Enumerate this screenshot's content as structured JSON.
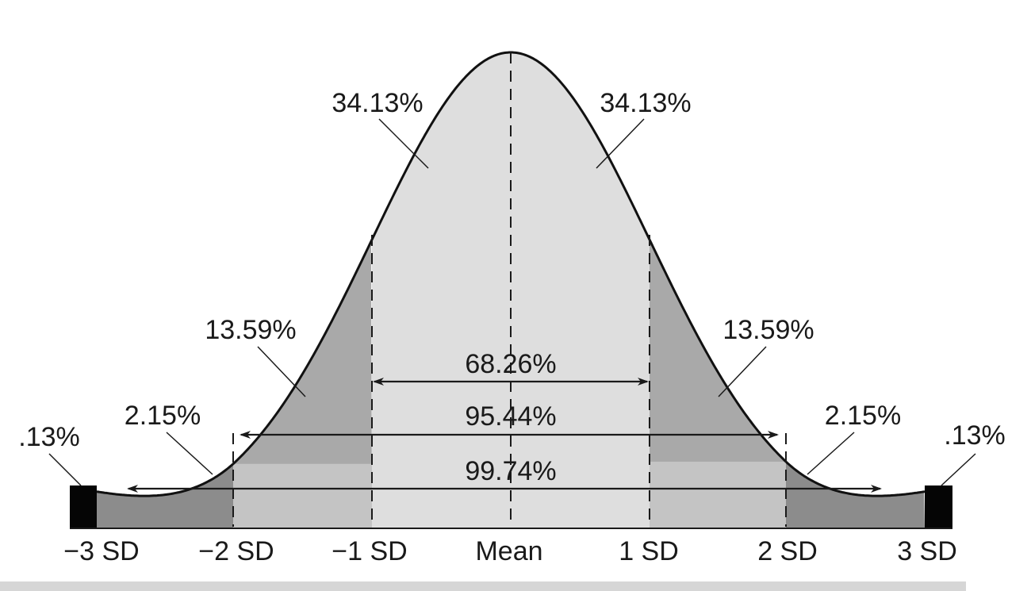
{
  "colors": {
    "center_band": "#dedede",
    "inner_band": "#a9a9a9",
    "middle_band": "#c4c4c4",
    "tail_band": "#8c8c8c",
    "extreme_tail": "#050505",
    "curve": "#111111",
    "footer_bar": "#d6d6d6"
  },
  "x_ticks": [
    "−3 SD",
    "−2 SD",
    "−1 SD",
    "Mean",
    "1 SD",
    "2 SD",
    "3 SD"
  ],
  "regions": {
    "left_inner": "34.13%",
    "right_inner": "34.13%",
    "left_second": "13.59%",
    "right_second": "13.59%",
    "left_third": "2.15%",
    "right_third": "2.15%",
    "left_tail": ".13%",
    "right_tail": ".13%"
  },
  "ranges": {
    "one_sd": "68.26%",
    "two_sd": "95.44%",
    "three_sd": "99.74%"
  }
}
